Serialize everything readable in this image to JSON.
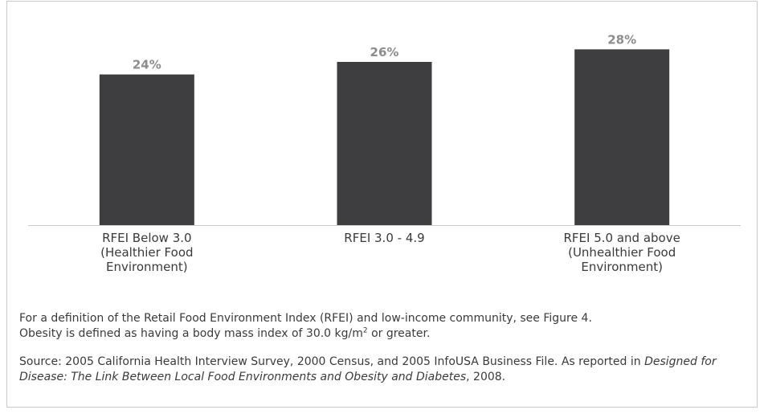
{
  "chart_data": {
    "type": "bar",
    "categories": [
      [
        "RFEI Below 3.0",
        "(Healthier Food",
        "Environment)"
      ],
      [
        "RFEI 3.0 - 4.9"
      ],
      [
        "RFEI 5.0 and above",
        "(Unhealthier Food",
        "Environment)"
      ]
    ],
    "values": [
      24,
      26,
      28
    ],
    "value_labels": [
      "24%",
      "26%",
      "28%"
    ],
    "title": "",
    "xlabel": "",
    "ylabel": "",
    "ylim": [
      0,
      30
    ],
    "grid": false,
    "colors": {
      "bar": "#3e3e40",
      "value_label": "#8c8c8c",
      "axis": "#c9c9c9"
    }
  },
  "notes": {
    "definition_1": "For a definition of the Retail Food Environment Index (RFEI) and low-income community, see Figure 4.",
    "definition_2_pre": "Obesity is defined as having a body mass index of 30.0 kg/m",
    "definition_2_sup": "2",
    "definition_2_post": " or greater.",
    "source_pre": "Source: 2005 California Health Interview Survey, 2000 Census, and 2005 InfoUSA Business File. As reported in ",
    "source_italic": "Designed for Disease: The Link Between Local Food Environments and Obesity and Diabetes",
    "source_post": ", 2008."
  }
}
